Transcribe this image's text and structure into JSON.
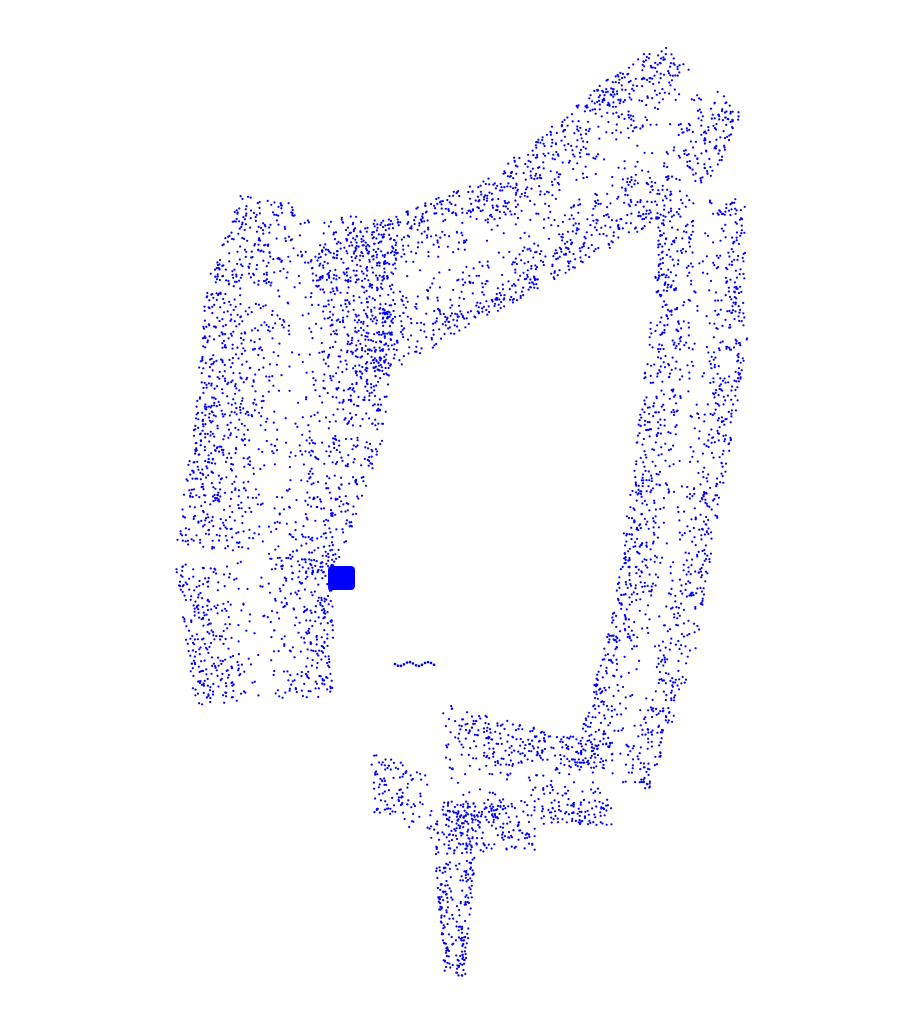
{
  "scene": {
    "background_color": "#ffffff",
    "point_color": "#0000ff",
    "marker_color": "#0000ff",
    "subject": "point-cloud"
  }
}
